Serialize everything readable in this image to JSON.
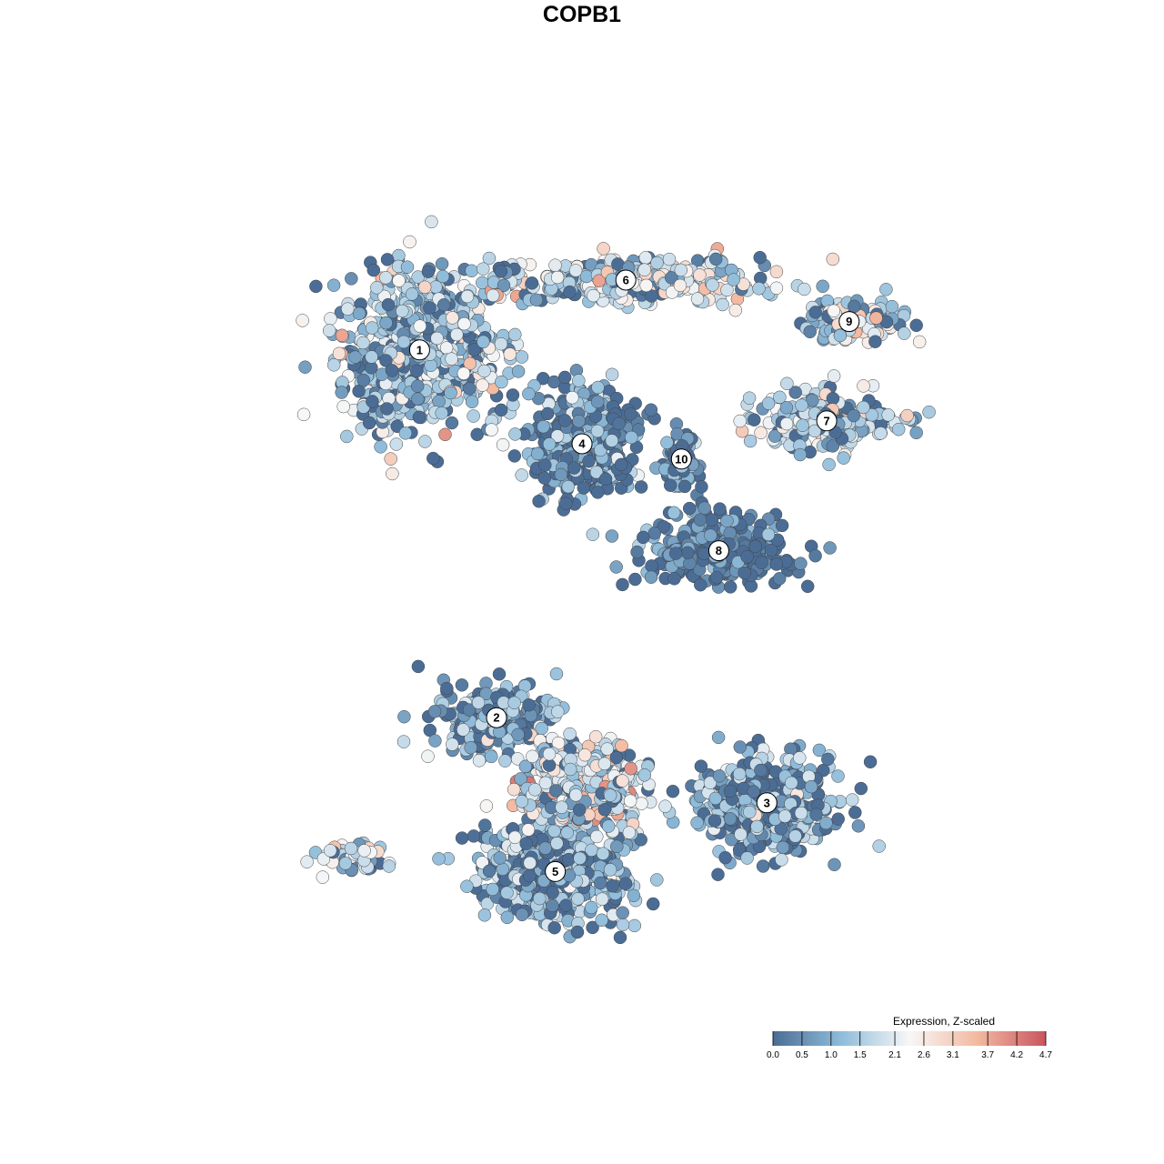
{
  "chart_data": {
    "type": "scatter",
    "title": "COPB1",
    "xlabel": "",
    "ylabel": "",
    "grid": false,
    "xlim": [
      -40,
      40
    ],
    "ylim": [
      -40,
      40
    ],
    "colors": {
      "low": "#4b6d95",
      "mid": "#f7f7f7",
      "high": "#c8555f",
      "point_stroke": "#444444"
    },
    "legend": {
      "title": "Expression, Z-scaled",
      "placement": "bottom-right",
      "ticks": [
        "0.0",
        "0.5",
        "1.0",
        "1.5",
        "2.1",
        "2.6",
        "3.1",
        "3.7",
        "4.2",
        "4.7"
      ],
      "tick_values": [
        0.0,
        0.5,
        1.0,
        1.5,
        2.1,
        2.6,
        3.1,
        3.7,
        4.2,
        4.7
      ],
      "range": [
        0.0,
        4.7
      ]
    },
    "clusters": [
      {
        "label": "1",
        "x": -16.9,
        "y": 19.6,
        "sx": 6.8,
        "sy": 6.4,
        "n": 700,
        "mean": 1.5,
        "sd": 0.9
      },
      {
        "label": "2",
        "x": -9.7,
        "y": -14.1,
        "sx": 5.0,
        "sy": 3.0,
        "n": 240,
        "mean": 0.9,
        "sd": 0.9
      },
      {
        "label": "3",
        "x": 15.6,
        "y": -21.9,
        "sx": 5.8,
        "sy": 3.8,
        "n": 480,
        "mean": 0.9,
        "sd": 0.8
      },
      {
        "label": "4",
        "x": -1.7,
        "y": 11.0,
        "sx": 4.5,
        "sy": 4.5,
        "n": 420,
        "mean": 0.6,
        "sd": 0.7
      },
      {
        "label": "5",
        "x": -4.2,
        "y": -28.2,
        "sx": 6.0,
        "sy": 4.0,
        "n": 600,
        "mean": 1.0,
        "sd": 0.8
      },
      {
        "label": "6",
        "x": 2.4,
        "y": 26.0,
        "sx": 12.0,
        "sy": 1.8,
        "n": 360,
        "mean": 2.0,
        "sd": 0.9
      },
      {
        "label": "7",
        "x": 21.2,
        "y": 13.1,
        "sx": 6.5,
        "sy": 2.2,
        "n": 230,
        "mean": 1.8,
        "sd": 0.9
      },
      {
        "label": "8",
        "x": 11.1,
        "y": 1.2,
        "sx": 6.0,
        "sy": 3.0,
        "n": 300,
        "mean": 0.3,
        "sd": 0.5
      },
      {
        "label": "9",
        "x": 23.3,
        "y": 22.2,
        "sx": 4.0,
        "sy": 1.8,
        "n": 160,
        "mean": 1.8,
        "sd": 0.8
      },
      {
        "label": "10",
        "x": 7.6,
        "y": 9.6,
        "sx": 1.6,
        "sy": 2.4,
        "n": 80,
        "mean": 0.5,
        "sd": 0.6
      },
      {
        "label": "",
        "x": -1.5,
        "y": -20.5,
        "sx": 4.5,
        "sy": 3.2,
        "n": 520,
        "mean": 2.1,
        "sd": 0.9
      },
      {
        "label": "",
        "x": -23.0,
        "y": -27.0,
        "sx": 3.5,
        "sy": 1.2,
        "n": 55,
        "mean": 1.6,
        "sd": 0.8
      }
    ]
  }
}
